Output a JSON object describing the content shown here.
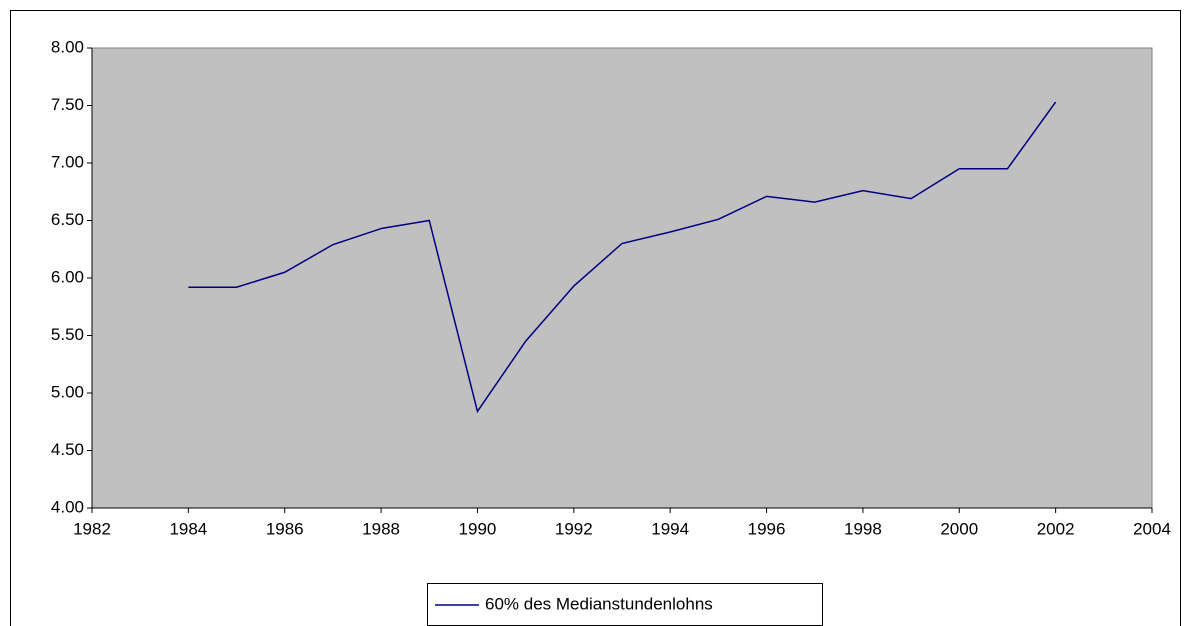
{
  "chart_data": {
    "type": "line",
    "x": [
      1984,
      1985,
      1986,
      1987,
      1988,
      1989,
      1990,
      1991,
      1992,
      1993,
      1994,
      1995,
      1996,
      1997,
      1998,
      1999,
      2000,
      2001,
      2002
    ],
    "series": [
      {
        "name": "60% des Medianstundenlohns",
        "color": "#000080",
        "values": [
          5.92,
          5.92,
          6.05,
          6.29,
          6.43,
          6.5,
          4.84,
          5.45,
          5.93,
          6.3,
          6.4,
          6.51,
          6.71,
          6.66,
          6.76,
          6.69,
          6.95,
          6.95,
          7.53
        ]
      }
    ],
    "xlim": [
      1982,
      2004
    ],
    "xticks": [
      1982,
      1984,
      1986,
      1988,
      1990,
      1992,
      1994,
      1996,
      1998,
      2000,
      2002,
      2004
    ],
    "ylim": [
      4,
      8
    ],
    "yticks": [
      {
        "value": 4,
        "label": "4.00"
      },
      {
        "value": 4.5,
        "label": "4.50"
      },
      {
        "value": 5,
        "label": "5.00"
      },
      {
        "value": 5.5,
        "label": "5.50"
      },
      {
        "value": 6,
        "label": "6.00"
      },
      {
        "value": 6.5,
        "label": "6.50"
      },
      {
        "value": 7,
        "label": "7.00"
      },
      {
        "value": 7.5,
        "label": "7.50"
      },
      {
        "value": 8,
        "label": "8.00"
      }
    ],
    "grid": false,
    "plot_background": "#c0c0c0",
    "legend": "bottom"
  }
}
